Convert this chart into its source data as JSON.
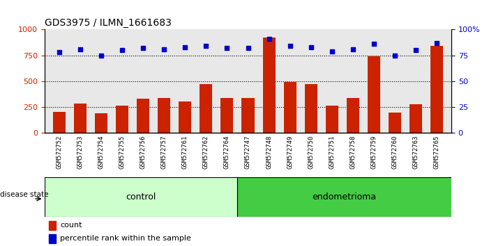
{
  "title": "GDS3975 / ILMN_1661683",
  "samples": [
    "GSM572752",
    "GSM572753",
    "GSM572754",
    "GSM572755",
    "GSM572756",
    "GSM572757",
    "GSM572761",
    "GSM572762",
    "GSM572764",
    "GSM572747",
    "GSM572748",
    "GSM572749",
    "GSM572750",
    "GSM572751",
    "GSM572758",
    "GSM572759",
    "GSM572760",
    "GSM572763",
    "GSM572765"
  ],
  "counts": [
    200,
    285,
    190,
    265,
    330,
    335,
    305,
    475,
    340,
    335,
    920,
    490,
    475,
    265,
    335,
    740,
    195,
    280,
    840
  ],
  "percentiles": [
    78,
    81,
    75,
    80,
    82,
    81,
    83,
    84,
    82,
    82,
    91,
    84,
    83,
    79,
    81,
    86,
    75,
    80,
    87
  ],
  "control_count": 9,
  "endometrioma_count": 10,
  "bar_color": "#cc2200",
  "dot_color": "#0000cc",
  "control_bg": "#ccffcc",
  "endometrioma_bg": "#44cc44",
  "ylim": [
    0,
    1000
  ],
  "yticks_left": [
    0,
    250,
    500,
    750,
    1000
  ],
  "ytick_labels_left": [
    "0",
    "250",
    "500",
    "750",
    "1000"
  ],
  "ytick_labels_right": [
    "0",
    "25",
    "50",
    "75",
    "100%"
  ],
  "grid_values": [
    250,
    500,
    750
  ],
  "plot_bg": "#e8e8e8",
  "label_area_bg": "#d8d8d8"
}
